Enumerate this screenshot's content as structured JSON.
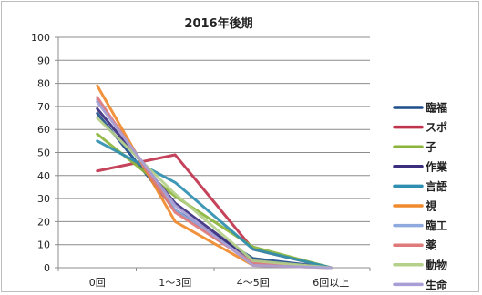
{
  "chart_data": {
    "type": "line",
    "title": "2016年後期",
    "xlabel": "",
    "ylabel": "",
    "categories": [
      "0回",
      "1～3回",
      "4～5回",
      "6回以上"
    ],
    "ylim": [
      0,
      100
    ],
    "yticks": [
      "0",
      "10",
      "20",
      "30",
      "40",
      "50",
      "60",
      "70",
      "80",
      "90",
      "100"
    ],
    "grid": true,
    "legend_position": "right",
    "series": [
      {
        "name": "臨福",
        "color": "#1f4e8c",
        "values": [
          67,
          25,
          4,
          0
        ]
      },
      {
        "name": "スポ",
        "color": "#c0334d",
        "values": [
          42,
          49,
          8,
          0
        ]
      },
      {
        "name": "子",
        "color": "#8bb43a",
        "values": [
          58,
          31,
          9,
          0
        ]
      },
      {
        "name": "作業",
        "color": "#3b2e7e",
        "values": [
          69,
          28,
          3,
          0
        ]
      },
      {
        "name": "言語",
        "color": "#2f8fb0",
        "values": [
          55,
          37,
          8,
          0
        ]
      },
      {
        "name": "視",
        "color": "#f08a2c",
        "values": [
          79,
          20,
          1,
          0
        ]
      },
      {
        "name": "臨工",
        "color": "#8eaadf",
        "values": [
          73,
          25,
          2,
          0
        ]
      },
      {
        "name": "薬",
        "color": "#e07a7a",
        "values": [
          74,
          24,
          2,
          0
        ]
      },
      {
        "name": "動物",
        "color": "#b5d08a",
        "values": [
          65,
          32,
          3,
          0
        ]
      },
      {
        "name": "生命",
        "color": "#a99fd6",
        "values": [
          72,
          27,
          1,
          0
        ]
      }
    ]
  }
}
